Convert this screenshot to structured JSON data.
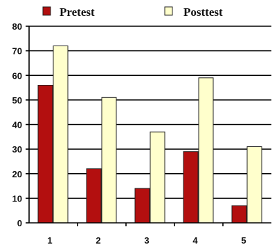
{
  "chart_data": {
    "type": "bar",
    "categories": [
      "1",
      "2",
      "3",
      "4",
      "5"
    ],
    "series": [
      {
        "name": "Pretest",
        "values": [
          56,
          22,
          14,
          29,
          7
        ],
        "color": "#b30f0f"
      },
      {
        "name": "Posttest",
        "values": [
          72,
          51,
          37,
          59,
          31
        ],
        "color": "#ffffcc"
      }
    ],
    "ylim": [
      0,
      80
    ],
    "yticks": [
      0,
      10,
      20,
      30,
      40,
      50,
      60,
      70,
      80
    ],
    "grid": true,
    "legend_position": "top"
  }
}
